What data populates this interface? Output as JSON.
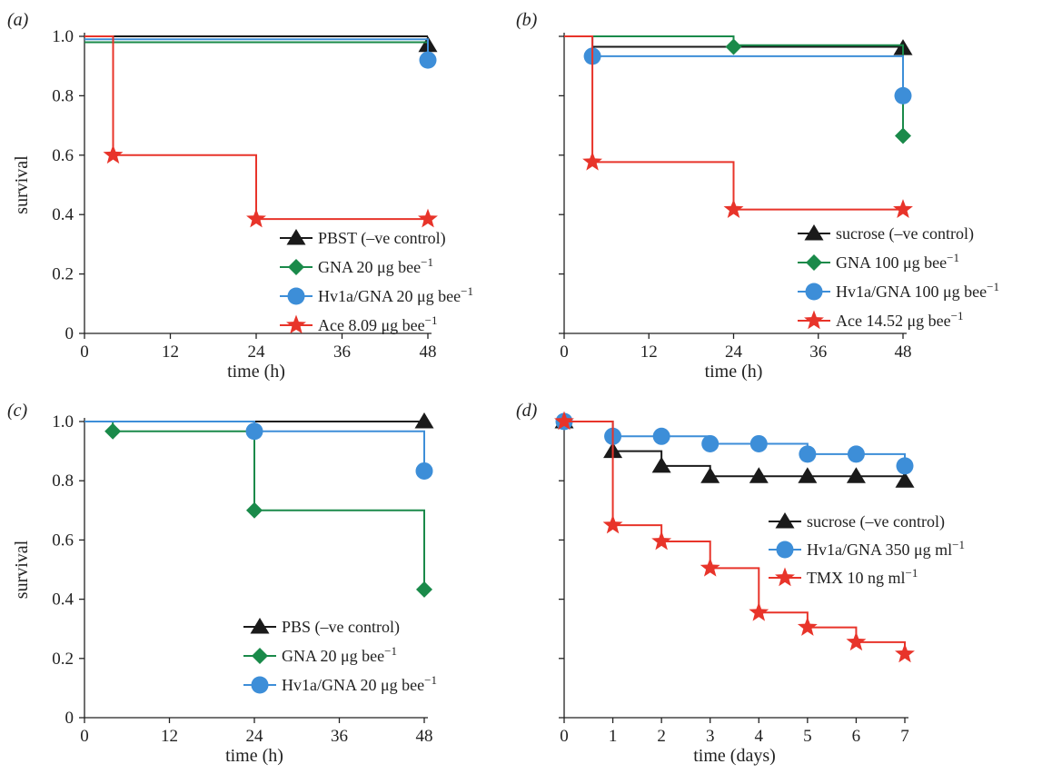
{
  "colors": {
    "control": "#1a1a1a",
    "gna": "#1a8a4a",
    "hv1a": "#3d8ed8",
    "toxin": "#e8342a",
    "axis": "#222222"
  },
  "chart_data": [
    {
      "type": "line",
      "panel_label": "(a)",
      "xlabel": "time (h)",
      "ylabel": "survival",
      "xlim": [
        0,
        48
      ],
      "ylim": [
        0,
        1.0
      ],
      "xticks": [
        0,
        12,
        24,
        36,
        48
      ],
      "yticks": [
        0,
        0.2,
        0.4,
        0.6,
        0.8,
        1.0
      ],
      "y_tick_labels_shown": true,
      "legend_position": "bottom-right",
      "grid": false,
      "series": [
        {
          "name": "PBST (–ve control)",
          "color": "control",
          "marker": "triangle",
          "points": [
            [
              0,
              1.0
            ],
            [
              48,
              1.0
            ]
          ],
          "markers": [
            [
              48,
              0.97
            ]
          ]
        },
        {
          "name": "GNA 20 μg bee−1",
          "color": "gna",
          "marker": "diamond",
          "points": [
            [
              0,
              0.98
            ],
            [
              48,
              0.98
            ],
            [
              48,
              0.92
            ]
          ],
          "markers": [
            [
              48,
              0.92
            ]
          ]
        },
        {
          "name": "Hv1a/GNA 20 μg bee−1",
          "color": "hv1a",
          "marker": "circle",
          "points": [
            [
              0,
              0.99
            ],
            [
              48,
              0.99
            ],
            [
              48,
              0.92
            ]
          ],
          "markers": [
            [
              48,
              0.92
            ]
          ]
        },
        {
          "name": "Ace 8.09 μg bee−1",
          "color": "toxin",
          "marker": "star",
          "points": [
            [
              0,
              1.0
            ],
            [
              4,
              1.0
            ],
            [
              4,
              0.6
            ],
            [
              24,
              0.6
            ],
            [
              24,
              0.385
            ],
            [
              48,
              0.385
            ]
          ],
          "markers": [
            [
              4,
              0.6
            ],
            [
              24,
              0.385
            ],
            [
              48,
              0.385
            ]
          ]
        }
      ]
    },
    {
      "type": "line",
      "panel_label": "(b)",
      "xlabel": "time (h)",
      "ylabel": "",
      "xlim": [
        0,
        48
      ],
      "ylim": [
        0,
        1.0
      ],
      "xticks": [
        0,
        12,
        24,
        36,
        48
      ],
      "yticks": [
        0,
        0.2,
        0.4,
        0.6,
        0.8,
        1.0
      ],
      "y_tick_labels_shown": false,
      "legend_position": "bottom-right",
      "grid": false,
      "series": [
        {
          "name": "sucrose (–ve control)",
          "color": "control",
          "marker": "triangle",
          "points": [
            [
              0,
              1.0
            ],
            [
              4,
              1.0
            ],
            [
              4,
              0.965
            ],
            [
              48,
              0.965
            ]
          ],
          "markers": [
            [
              48,
              0.96
            ]
          ]
        },
        {
          "name": "GNA 100 μg bee−1",
          "color": "gna",
          "marker": "diamond",
          "points": [
            [
              0,
              1.0
            ],
            [
              24,
              1.0
            ],
            [
              24,
              0.97
            ],
            [
              48,
              0.97
            ],
            [
              48,
              0.665
            ]
          ],
          "markers": [
            [
              24,
              0.965
            ],
            [
              48,
              0.665
            ]
          ]
        },
        {
          "name": "Hv1a/GNA 100 μg bee−1",
          "color": "hv1a",
          "marker": "circle",
          "points": [
            [
              0,
              1.0
            ],
            [
              4,
              1.0
            ],
            [
              4,
              0.933
            ],
            [
              48,
              0.933
            ],
            [
              48,
              0.8
            ]
          ],
          "markers": [
            [
              4,
              0.933
            ],
            [
              48,
              0.8
            ]
          ]
        },
        {
          "name": "Ace 14.52 μg bee−1",
          "color": "toxin",
          "marker": "star",
          "points": [
            [
              0,
              1.0
            ],
            [
              4,
              1.0
            ],
            [
              4,
              0.577
            ],
            [
              24,
              0.577
            ],
            [
              24,
              0.417
            ],
            [
              48,
              0.417
            ]
          ],
          "markers": [
            [
              4,
              0.577
            ],
            [
              24,
              0.417
            ],
            [
              48,
              0.417
            ]
          ]
        }
      ]
    },
    {
      "type": "line",
      "panel_label": "(c)",
      "xlabel": "time (h)",
      "ylabel": "survival",
      "xlim": [
        0,
        48
      ],
      "ylim": [
        0,
        1.0
      ],
      "xticks": [
        0,
        12,
        24,
        36,
        48
      ],
      "yticks": [
        0,
        0.2,
        0.4,
        0.6,
        0.8,
        1.0
      ],
      "y_tick_labels_shown": true,
      "legend_position": "bottom-right",
      "grid": false,
      "series": [
        {
          "name": "PBS (–ve control)",
          "color": "control",
          "marker": "triangle",
          "points": [
            [
              0,
              1.0
            ],
            [
              48,
              1.0
            ]
          ],
          "markers": [
            [
              48,
              1.0
            ]
          ]
        },
        {
          "name": "GNA 20 μg bee−1",
          "color": "gna",
          "marker": "diamond",
          "points": [
            [
              0,
              1.0
            ],
            [
              4,
              1.0
            ],
            [
              4,
              0.967
            ],
            [
              24,
              0.967
            ],
            [
              24,
              0.7
            ],
            [
              48,
              0.7
            ],
            [
              48,
              0.433
            ]
          ],
          "markers": [
            [
              4,
              0.967
            ],
            [
              24,
              0.7
            ],
            [
              48,
              0.433
            ]
          ]
        },
        {
          "name": "Hv1a/GNA 20 μg bee−1",
          "color": "hv1a",
          "marker": "circle",
          "points": [
            [
              0,
              1.0
            ],
            [
              24,
              1.0
            ],
            [
              24,
              0.967
            ],
            [
              48,
              0.967
            ],
            [
              48,
              0.833
            ]
          ],
          "markers": [
            [
              24,
              0.967
            ],
            [
              48,
              0.833
            ]
          ]
        }
      ]
    },
    {
      "type": "line",
      "panel_label": "(d)",
      "xlabel": "time (days)",
      "ylabel": "",
      "xlim": [
        0,
        7
      ],
      "ylim": [
        0,
        1.0
      ],
      "xticks": [
        0,
        1,
        2,
        3,
        4,
        5,
        6,
        7
      ],
      "yticks": [
        0,
        0.2,
        0.4,
        0.6,
        0.8,
        1.0
      ],
      "y_tick_labels_shown": false,
      "legend_position": "center-right",
      "grid": false,
      "series": [
        {
          "name": "sucrose (–ve control)",
          "color": "control",
          "marker": "triangle",
          "points": [
            [
              0,
              1.0
            ],
            [
              1,
              1.0
            ],
            [
              1,
              0.9
            ],
            [
              2,
              0.9
            ],
            [
              2,
              0.85
            ],
            [
              3,
              0.85
            ],
            [
              3,
              0.815
            ],
            [
              7,
              0.815
            ]
          ],
          "markers": [
            [
              0,
              1.0
            ],
            [
              1,
              0.9
            ],
            [
              2,
              0.85
            ],
            [
              3,
              0.815
            ],
            [
              4,
              0.815
            ],
            [
              5,
              0.815
            ],
            [
              6,
              0.815
            ],
            [
              7,
              0.8
            ]
          ]
        },
        {
          "name": "Hv1a/GNA 350 μg ml−1",
          "color": "hv1a",
          "marker": "circle",
          "points": [
            [
              0,
              1.0
            ],
            [
              1,
              1.0
            ],
            [
              1,
              0.95
            ],
            [
              3,
              0.95
            ],
            [
              3,
              0.925
            ],
            [
              5,
              0.925
            ],
            [
              5,
              0.89
            ],
            [
              7,
              0.89
            ],
            [
              7,
              0.85
            ]
          ],
          "markers": [
            [
              0,
              1.0
            ],
            [
              1,
              0.95
            ],
            [
              2,
              0.95
            ],
            [
              3,
              0.925
            ],
            [
              4,
              0.925
            ],
            [
              5,
              0.89
            ],
            [
              6,
              0.89
            ],
            [
              7,
              0.85
            ]
          ]
        },
        {
          "name": "TMX 10 ng ml−1",
          "color": "toxin",
          "marker": "star",
          "points": [
            [
              0,
              1.0
            ],
            [
              1,
              1.0
            ],
            [
              1,
              0.65
            ],
            [
              2,
              0.65
            ],
            [
              2,
              0.595
            ],
            [
              3,
              0.595
            ],
            [
              3,
              0.505
            ],
            [
              4,
              0.505
            ],
            [
              4,
              0.355
            ],
            [
              5,
              0.355
            ],
            [
              5,
              0.305
            ],
            [
              6,
              0.305
            ],
            [
              6,
              0.255
            ],
            [
              7,
              0.255
            ],
            [
              7,
              0.215
            ]
          ],
          "markers": [
            [
              0,
              1.0
            ],
            [
              1,
              0.65
            ],
            [
              2,
              0.595
            ],
            [
              3,
              0.505
            ],
            [
              4,
              0.355
            ],
            [
              5,
              0.305
            ],
            [
              6,
              0.255
            ],
            [
              7,
              0.215
            ]
          ]
        }
      ]
    }
  ]
}
